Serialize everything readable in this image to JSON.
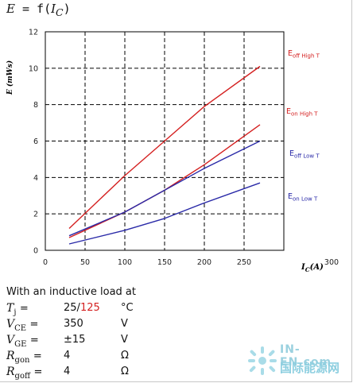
{
  "equation": {
    "lhs": "E",
    "eq": " = ",
    "func": "f(",
    "arg": "I",
    "arg_sub": "C",
    "close": ")"
  },
  "chart_data": {
    "type": "line",
    "xlabel_main": "I",
    "xlabel_sub": "C",
    "xlabel_unit": "(A)",
    "ylabel": "E (mWs)",
    "xlim": [
      0,
      300
    ],
    "ylim": [
      0,
      12
    ],
    "x_ticks": [
      "0",
      "50",
      "100",
      "150",
      "200",
      "250",
      "300"
    ],
    "y_ticks": [
      "0",
      "2",
      "4",
      "6",
      "8",
      "10",
      "12"
    ],
    "grid": true,
    "series": [
      {
        "name": "Eoff High T",
        "label_main": "E",
        "label_sub": "off High T",
        "color": "#d42020",
        "x": [
          30,
          100,
          150,
          200,
          270
        ],
        "y": [
          1.2,
          4.1,
          6.0,
          7.9,
          10.1
        ]
      },
      {
        "name": "Eon High T",
        "label_main": "E",
        "label_sub": "on High T",
        "color": "#d42020",
        "x": [
          30,
          100,
          150,
          200,
          270
        ],
        "y": [
          0.7,
          2.1,
          3.3,
          4.7,
          6.9
        ]
      },
      {
        "name": "Eoff Low T",
        "label_main": "E",
        "label_sub": "off Low T",
        "color": "#2a2aa8",
        "x": [
          30,
          100,
          150,
          200,
          270
        ],
        "y": [
          0.8,
          2.1,
          3.3,
          4.5,
          6.0
        ]
      },
      {
        "name": "Eon Low T",
        "label_main": "E",
        "label_sub": "on Low T",
        "color": "#2a2aa8",
        "x": [
          30,
          100,
          150,
          200,
          270
        ],
        "y": [
          0.35,
          1.1,
          1.75,
          2.6,
          3.7
        ]
      }
    ]
  },
  "conditions": {
    "title": "With an inductive load at",
    "rows": [
      {
        "sym": "T",
        "sub": "j",
        "eq": "=",
        "val_a": "25",
        "val_sep": "/",
        "val_b": "125",
        "unit": "°C"
      },
      {
        "sym": "V",
        "sub": "CE",
        "eq": "=",
        "val_a": "350",
        "val_sep": "",
        "val_b": "",
        "unit": "V"
      },
      {
        "sym": "V",
        "sub": "GE",
        "eq": "=",
        "val_a": "±15",
        "val_sep": "",
        "val_b": "",
        "unit": "V"
      },
      {
        "sym": "R",
        "sub": "gon",
        "eq": "=",
        "val_a": "4",
        "val_sep": "",
        "val_b": "",
        "unit": "Ω"
      },
      {
        "sym": "R",
        "sub": "goff",
        "eq": "=",
        "val_a": "4",
        "val_sep": "",
        "val_b": "",
        "unit": "Ω"
      }
    ]
  },
  "watermark": {
    "line1": "IN-EN.com",
    "line2": "国际能源网"
  }
}
